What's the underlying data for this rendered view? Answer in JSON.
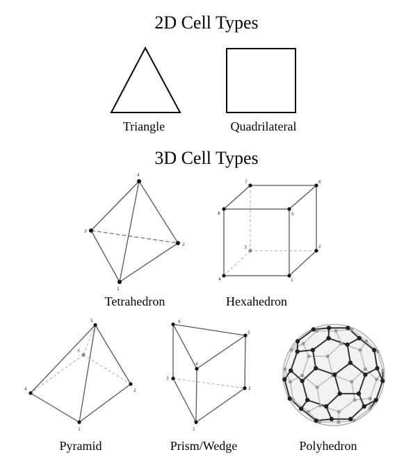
{
  "headings": {
    "cells_2d": "2D Cell Types",
    "cells_3d": "3D Cell Types"
  },
  "captions": {
    "triangle": "Triangle",
    "quadrilateral": "Quadrilateral",
    "tetrahedron": "Tetrahedron",
    "hexahedron": "Hexahedron",
    "pyramid": "Pyramid",
    "prism": "Prism/Wedge",
    "polyhedron": "Polyhedron"
  },
  "vertex_labels": {
    "tetrahedron": [
      "1",
      "2",
      "3",
      "4"
    ],
    "hexahedron": [
      "1",
      "2",
      "3",
      "4",
      "5",
      "6",
      "7",
      "8"
    ],
    "pyramid": [
      "1",
      "2",
      "3",
      "4",
      "5"
    ],
    "prism": [
      "1",
      "2",
      "3",
      "4",
      "5",
      "6"
    ]
  }
}
